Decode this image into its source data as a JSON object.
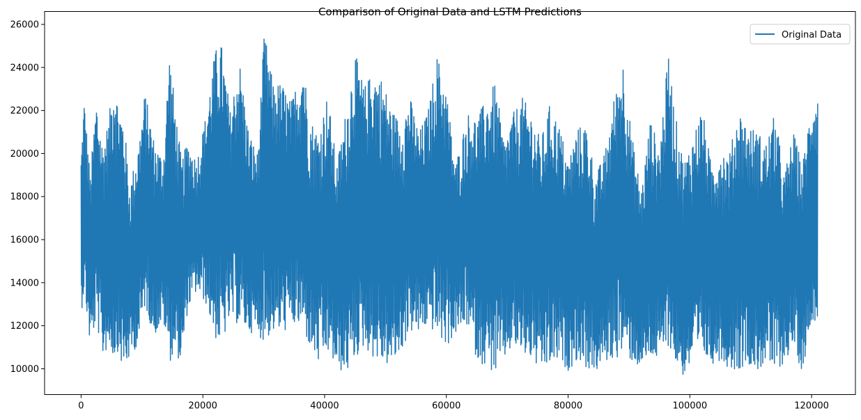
{
  "chart_data": {
    "type": "line",
    "title": "Comparison of Original Data and LSTM Predictions",
    "xlabel": "",
    "ylabel": "",
    "xlim": [
      -6000,
      127200
    ],
    "ylim": [
      8800,
      26600
    ],
    "x_ticks": [
      0,
      20000,
      40000,
      60000,
      80000,
      100000,
      120000
    ],
    "x_tick_labels": [
      "0",
      "20000",
      "40000",
      "60000",
      "80000",
      "100000",
      "120000"
    ],
    "y_ticks": [
      10000,
      12000,
      14000,
      16000,
      18000,
      20000,
      22000,
      24000,
      26000
    ],
    "y_tick_labels": [
      "10000",
      "12000",
      "14000",
      "16000",
      "18000",
      "20000",
      "22000",
      "24000",
      "26000"
    ],
    "grid": false,
    "legend_position": "top-right",
    "series": [
      {
        "name": "Original Data",
        "color": "#1f77b4",
        "x_start": 0,
        "x_end": 121000,
        "envelope": {
          "x": [
            0,
            500,
            1500,
            2500,
            3500,
            4500,
            5500,
            6000,
            7000,
            8000,
            9500,
            10500,
            12000,
            13500,
            14500,
            15500,
            16500,
            17500,
            19000,
            20500,
            22000,
            23000,
            24500,
            26000,
            27500,
            29000,
            30100,
            31500,
            33000,
            34500,
            36500,
            37500,
            39000,
            40500,
            42000,
            43500,
            45000,
            46500,
            48000,
            49500,
            51000,
            52500,
            54000,
            55500,
            57000,
            58500,
            60000,
            61500,
            63500,
            65000,
            66500,
            68000,
            69500,
            71000,
            72500,
            74000,
            75500,
            77000,
            78500,
            80000,
            81500,
            83000,
            84500,
            86000,
            87500,
            89000,
            90500,
            92000,
            93500,
            95000,
            96500,
            97500,
            99000,
            100500,
            102000,
            103500,
            105000,
            106500,
            108000,
            109500,
            111000,
            112500,
            114000,
            115500,
            117000,
            118500,
            120000,
            121000
          ],
          "high": [
            20000,
            22600,
            19000,
            22600,
            20500,
            21500,
            24000,
            22500,
            21700,
            18500,
            20600,
            22900,
            20600,
            19800,
            24800,
            22100,
            19700,
            20600,
            19700,
            21800,
            24800,
            25200,
            22000,
            24400,
            21100,
            20000,
            25700,
            23300,
            23300,
            22400,
            24400,
            21700,
            21000,
            22800,
            19500,
            22000,
            24700,
            23100,
            23900,
            23500,
            22100,
            21500,
            22700,
            21000,
            22000,
            24600,
            23000,
            19500,
            21900,
            21700,
            22500,
            23300,
            20600,
            21900,
            22600,
            21900,
            20600,
            22300,
            21400,
            19700,
            21200,
            21400,
            19000,
            20000,
            22500,
            24400,
            20800,
            18300,
            21600,
            20300,
            24700,
            22000,
            19600,
            20800,
            22200,
            19500,
            20300,
            20000,
            22100,
            21300,
            21100,
            20500,
            21900,
            19000,
            21000,
            19500,
            22500,
            22700
          ],
          "low": [
            12500,
            13600,
            11000,
            12200,
            10500,
            11000,
            10400,
            10800,
            9800,
            10500,
            11200,
            12900,
            11500,
            12200,
            10300,
            10700,
            10200,
            12700,
            13600,
            13000,
            11400,
            11000,
            12300,
            12000,
            11700,
            11600,
            11200,
            11700,
            11600,
            12000,
            11800,
            11000,
            10200,
            10700,
            10000,
            9700,
            10400,
            11000,
            10500,
            10200,
            10100,
            10700,
            11700,
            11600,
            12000,
            11500,
            11000,
            11600,
            12000,
            10400,
            10100,
            9700,
            10400,
            11000,
            10600,
            10400,
            9800,
            10100,
            10300,
            9900,
            10400,
            10000,
            9800,
            10300,
            10400,
            10700,
            10300,
            10000,
            10500,
            10300,
            11100,
            10300,
            9600,
            10300,
            10600,
            10200,
            10400,
            10000,
            9900,
            10300,
            9800,
            10300,
            9700,
            10300,
            11000,
            9800,
            12300,
            12200
          ]
        }
      }
    ]
  }
}
